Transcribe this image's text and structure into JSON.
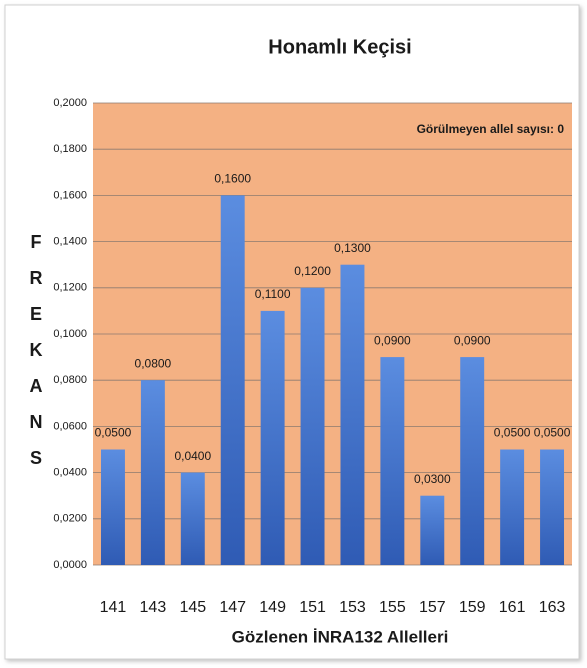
{
  "chart_data": {
    "type": "bar",
    "title": "Honamlı  Keçisi",
    "ylabel": "FREKANS",
    "xlabel": "Gözlenen İNRA132  Allelleri",
    "annotation": "Görülmeyen allel sayısı: 0",
    "categories": [
      "141",
      "143",
      "145",
      "147",
      "149",
      "151",
      "153",
      "155",
      "157",
      "159",
      "161",
      "163"
    ],
    "values": [
      0.05,
      0.08,
      0.04,
      0.16,
      0.11,
      0.12,
      0.13,
      0.09,
      0.03,
      0.09,
      0.05,
      0.05
    ],
    "value_labels": [
      "0,0500",
      "0,0800",
      "0,0400",
      "0,1600",
      "0,1100",
      "0,1200",
      "0,1300",
      "0,0900",
      "0,0300",
      "0,0900",
      "0,0500",
      "0,0500"
    ],
    "color": "#4472c4",
    "plot_background": "#f4b183",
    "ylim": [
      0,
      0.2
    ],
    "yticks": [
      {
        "value": 0,
        "label": "0,0000"
      },
      {
        "value": 0.02,
        "label": "0,0200"
      },
      {
        "value": 0.04,
        "label": "0,0400"
      },
      {
        "value": 0.06,
        "label": "0,0600"
      },
      {
        "value": 0.08,
        "label": "0,0800"
      },
      {
        "value": 0.1,
        "label": "0,1000"
      },
      {
        "value": 0.12,
        "label": "0,1200"
      },
      {
        "value": 0.14,
        "label": "0,1400"
      },
      {
        "value": 0.16,
        "label": "0,1600"
      },
      {
        "value": 0.18,
        "label": "0,1800"
      },
      {
        "value": 0.2,
        "label": "0,2000"
      }
    ],
    "grid": true
  }
}
